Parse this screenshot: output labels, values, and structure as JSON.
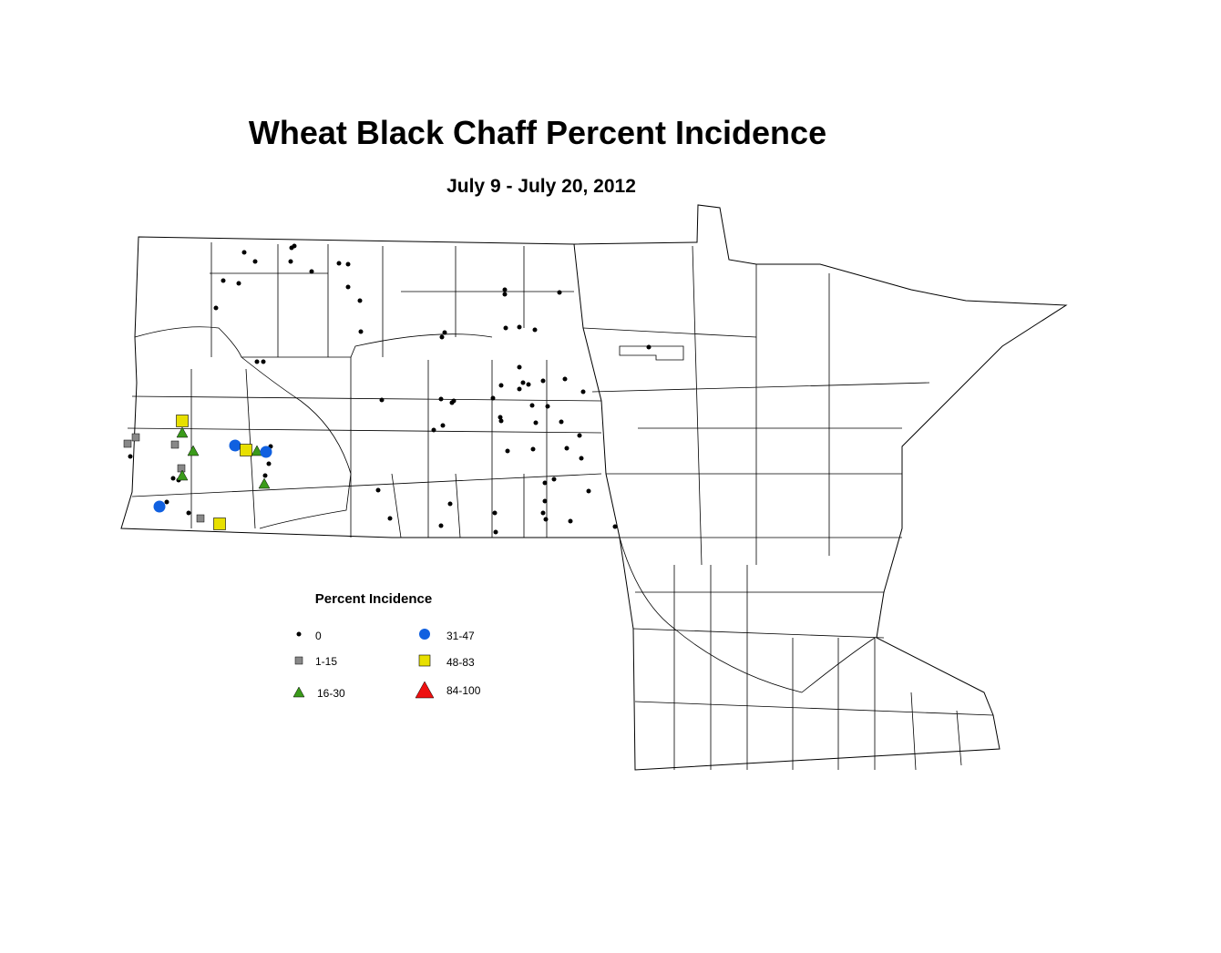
{
  "title": "Wheat Black Chaff Percent Incidence",
  "subtitle": "July 9 - July 20, 2012",
  "legend": {
    "title": "Percent Incidence",
    "items": [
      {
        "label": "0"
      },
      {
        "label": "1-15"
      },
      {
        "label": "16-30"
      },
      {
        "label": "31-47"
      },
      {
        "label": "48-83"
      },
      {
        "label": "84-100"
      }
    ]
  }
}
